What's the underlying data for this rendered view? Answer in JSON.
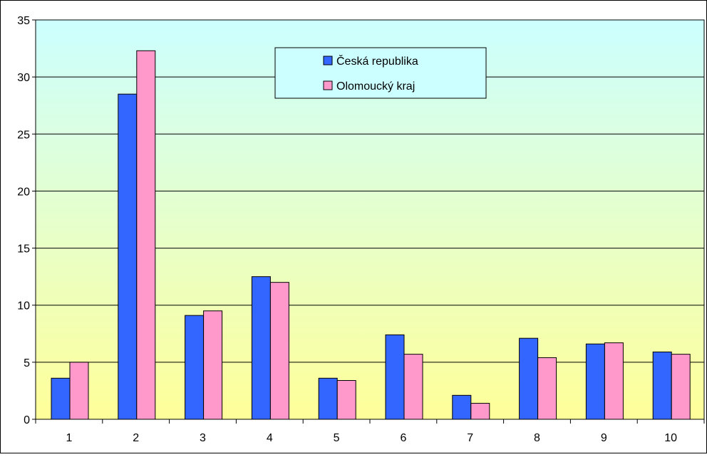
{
  "chart_data": {
    "type": "bar",
    "categories": [
      "1",
      "2",
      "3",
      "4",
      "5",
      "6",
      "7",
      "8",
      "9",
      "10"
    ],
    "series": [
      {
        "name": "Česká republika",
        "color": "#3366FF",
        "values": [
          3.6,
          28.5,
          9.1,
          12.5,
          3.6,
          7.4,
          2.1,
          7.1,
          6.6,
          5.9
        ]
      },
      {
        "name": "Olomoucký kraj",
        "color": "#FF99CC",
        "values": [
          5.0,
          32.3,
          9.5,
          12.0,
          3.4,
          5.7,
          1.4,
          5.4,
          6.7,
          5.7
        ]
      }
    ],
    "yticks": [
      "0",
      "5",
      "10",
      "15",
      "20",
      "25",
      "30",
      "35"
    ],
    "ylim": [
      0,
      35
    ],
    "grid": true,
    "legend_position": "top-center",
    "background_gradient": [
      "#CCFFFF",
      "#FFFF99"
    ]
  }
}
